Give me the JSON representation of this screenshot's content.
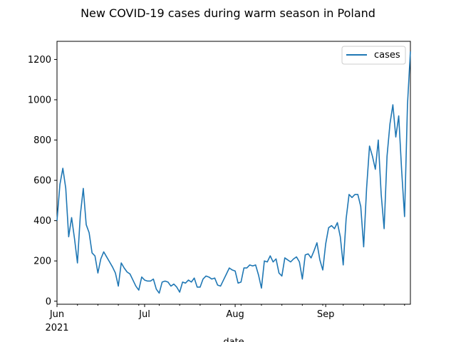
{
  "chart_data": {
    "type": "line",
    "title": "New COVID-19 cases during warm season in Poland",
    "xlabel": "date",
    "ylabel": "",
    "x_start": "2021-06-01",
    "x_end": "2021-09-30",
    "ylim": [
      -15,
      1290
    ],
    "y_ticks": [
      0,
      200,
      400,
      600,
      800,
      1000,
      1200
    ],
    "x_ticks": [
      {
        "date": "2021-06-01",
        "label": "Jun",
        "sublabel": "2021"
      },
      {
        "date": "2021-07-01",
        "label": "Jul",
        "sublabel": ""
      },
      {
        "date": "2021-08-01",
        "label": "Aug",
        "sublabel": ""
      },
      {
        "date": "2021-09-01",
        "label": "Sep",
        "sublabel": ""
      }
    ],
    "minor_x_ticks": [
      "2021-06-08",
      "2021-06-15",
      "2021-06-22",
      "2021-06-29",
      "2021-07-06",
      "2021-07-13",
      "2021-07-20",
      "2021-07-27",
      "2021-08-03",
      "2021-08-10",
      "2021-08-17",
      "2021-08-24",
      "2021-08-31",
      "2021-09-07",
      "2021-09-14",
      "2021-09-21",
      "2021-09-28"
    ],
    "legend_position": "top-right",
    "grid": false,
    "series": [
      {
        "name": "cases",
        "color": "#1f77b4",
        "values": [
          400,
          580,
          660,
          560,
          320,
          415,
          310,
          190,
          430,
          560,
          380,
          340,
          240,
          225,
          140,
          210,
          245,
          220,
          195,
          170,
          140,
          75,
          190,
          165,
          145,
          135,
          105,
          75,
          55,
          120,
          105,
          100,
          100,
          110,
          60,
          40,
          95,
          100,
          95,
          75,
          85,
          70,
          45,
          95,
          90,
          105,
          95,
          115,
          70,
          70,
          110,
          125,
          120,
          110,
          115,
          80,
          75,
          105,
          135,
          165,
          155,
          150,
          90,
          95,
          165,
          165,
          180,
          175,
          180,
          130,
          65,
          200,
          195,
          225,
          195,
          210,
          140,
          125,
          215,
          205,
          195,
          210,
          220,
          195,
          110,
          230,
          235,
          215,
          250,
          290,
          205,
          155,
          285,
          365,
          375,
          360,
          390,
          320,
          180,
          410,
          530,
          515,
          530,
          530,
          470,
          270,
          560,
          770,
          720,
          655,
          800,
          530,
          360,
          720,
          880,
          975,
          815,
          920,
          650,
          420,
          975,
          1240
        ]
      }
    ]
  }
}
